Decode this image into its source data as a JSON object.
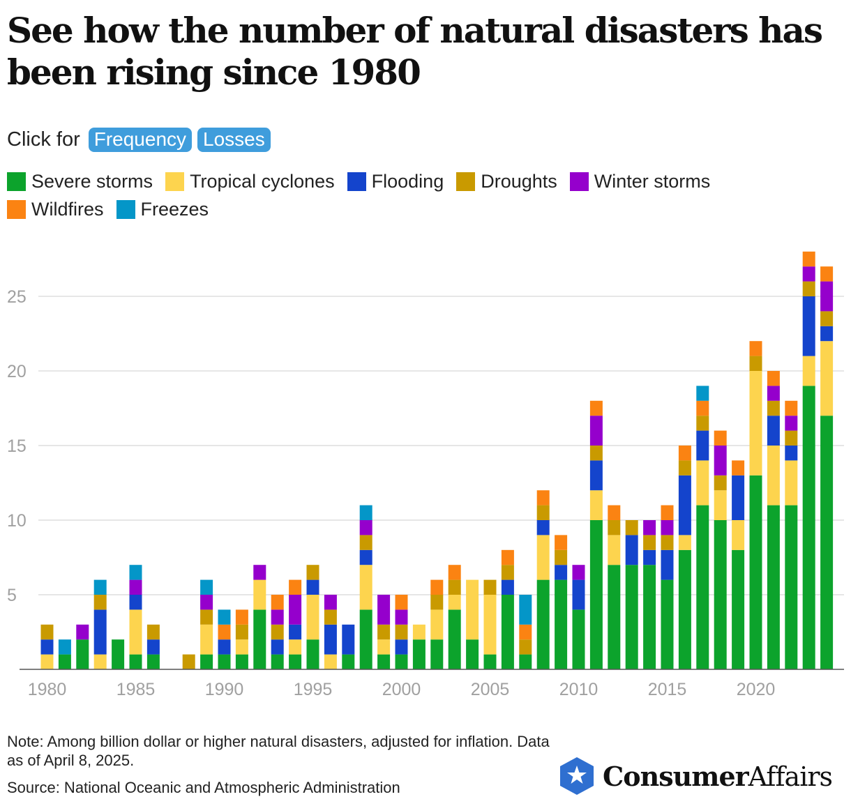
{
  "title": "See how the number of natural disasters has been rising since 1980",
  "controls": {
    "label": "Click for",
    "buttons": [
      "Frequency",
      "Losses"
    ]
  },
  "colors": {
    "severe_storms": "#0ca32c",
    "tropical_cyclones": "#fdd44e",
    "flooding": "#1444cc",
    "droughts": "#c99a00",
    "winter_storms": "#9500cc",
    "wildfires": "#fb8312",
    "freezes": "#0496c8"
  },
  "chart_data": {
    "type": "bar",
    "stacked": true,
    "years": [
      1980,
      1981,
      1982,
      1983,
      1984,
      1985,
      1986,
      1987,
      1988,
      1989,
      1990,
      1991,
      1992,
      1993,
      1994,
      1995,
      1996,
      1997,
      1998,
      1999,
      2000,
      2001,
      2002,
      2003,
      2004,
      2005,
      2006,
      2007,
      2008,
      2009,
      2010,
      2011,
      2012,
      2013,
      2014,
      2015,
      2016,
      2017,
      2018,
      2019,
      2020,
      2021,
      2022,
      2023,
      2024
    ],
    "series": [
      {
        "name": "Severe storms",
        "key": "severe_storms",
        "values": [
          0,
          1,
          2,
          0,
          2,
          1,
          1,
          0,
          0,
          1,
          1,
          1,
          4,
          1,
          1,
          2,
          0,
          1,
          4,
          1,
          1,
          2,
          2,
          4,
          2,
          1,
          5,
          1,
          6,
          6,
          4,
          10,
          7,
          7,
          7,
          6,
          8,
          11,
          10,
          8,
          13,
          11,
          11,
          19,
          17
        ]
      },
      {
        "name": "Tropical cyclones",
        "key": "tropical_cyclones",
        "values": [
          1,
          0,
          0,
          1,
          0,
          3,
          0,
          0,
          0,
          2,
          0,
          1,
          2,
          0,
          1,
          3,
          1,
          0,
          3,
          1,
          0,
          1,
          2,
          1,
          4,
          4,
          0,
          0,
          3,
          0,
          0,
          2,
          2,
          0,
          0,
          0,
          1,
          3,
          2,
          2,
          7,
          4,
          3,
          2,
          5
        ]
      },
      {
        "name": "Flooding",
        "key": "flooding",
        "values": [
          1,
          0,
          0,
          3,
          0,
          1,
          1,
          0,
          0,
          0,
          1,
          0,
          0,
          1,
          1,
          1,
          2,
          2,
          1,
          0,
          1,
          0,
          0,
          0,
          0,
          0,
          1,
          0,
          1,
          1,
          2,
          2,
          0,
          2,
          1,
          2,
          4,
          2,
          0,
          3,
          0,
          2,
          1,
          4,
          1
        ]
      },
      {
        "name": "Droughts",
        "key": "droughts",
        "values": [
          1,
          0,
          0,
          1,
          0,
          0,
          1,
          0,
          1,
          1,
          0,
          1,
          0,
          1,
          0,
          1,
          1,
          0,
          1,
          1,
          1,
          0,
          1,
          1,
          0,
          1,
          1,
          1,
          1,
          1,
          0,
          1,
          1,
          1,
          1,
          1,
          1,
          1,
          1,
          0,
          1,
          1,
          1,
          1,
          1
        ]
      },
      {
        "name": "Winter storms",
        "key": "winter_storms",
        "values": [
          0,
          0,
          1,
          0,
          0,
          1,
          0,
          0,
          0,
          1,
          0,
          0,
          1,
          1,
          2,
          0,
          1,
          0,
          1,
          2,
          1,
          0,
          0,
          0,
          0,
          0,
          0,
          0,
          0,
          0,
          1,
          2,
          0,
          0,
          1,
          1,
          0,
          0,
          2,
          0,
          0,
          1,
          1,
          1,
          2
        ]
      },
      {
        "name": "Wildfires",
        "key": "wildfires",
        "values": [
          0,
          0,
          0,
          0,
          0,
          0,
          0,
          0,
          0,
          0,
          1,
          1,
          0,
          1,
          1,
          0,
          0,
          0,
          0,
          0,
          1,
          0,
          1,
          1,
          0,
          0,
          1,
          1,
          1,
          1,
          0,
          1,
          1,
          0,
          0,
          1,
          1,
          1,
          1,
          1,
          1,
          1,
          1,
          1,
          1
        ]
      },
      {
        "name": "Freezes",
        "key": "freezes",
        "values": [
          0,
          1,
          0,
          1,
          0,
          1,
          0,
          0,
          0,
          1,
          1,
          0,
          0,
          0,
          0,
          0,
          0,
          0,
          1,
          0,
          0,
          0,
          0,
          0,
          0,
          0,
          0,
          2,
          0,
          0,
          0,
          0,
          0,
          0,
          0,
          0,
          0,
          1,
          0,
          0,
          0,
          0,
          0,
          0,
          0
        ]
      }
    ],
    "y_ticks": [
      5,
      10,
      15,
      20,
      25
    ],
    "x_ticks": [
      1980,
      1985,
      1990,
      1995,
      2000,
      2005,
      2010,
      2015,
      2020
    ],
    "ylim": [
      0,
      28
    ],
    "xlabel": "",
    "ylabel": "",
    "grid": true
  },
  "legend_rows": [
    [
      "severe_storms",
      "tropical_cyclones",
      "flooding",
      "droughts",
      "winter_storms"
    ],
    [
      "wildfires",
      "freezes"
    ]
  ],
  "legend_labels": {
    "severe_storms": "Severe storms",
    "tropical_cyclones": "Tropical cyclones",
    "flooding": "Flooding",
    "droughts": "Droughts",
    "winter_storms": "Winter storms",
    "wildfires": "Wildfires",
    "freezes": "Freezes"
  },
  "footer": {
    "note": "Note: Among billion dollar or higher natural disasters, adjusted for inflation. Data as of April 8, 2025.",
    "source": "Source: National Oceanic and Atmospheric Administration",
    "logo_bold": "Consumer",
    "logo_regular": "Affairs",
    "logo_icon": "star-shield-icon"
  }
}
